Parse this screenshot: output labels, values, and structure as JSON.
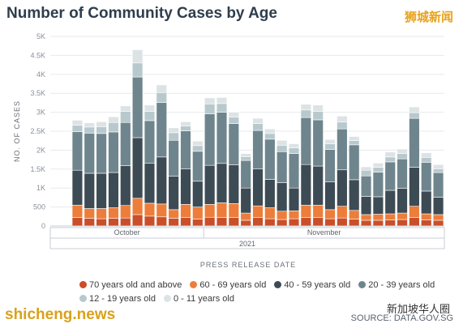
{
  "watermarks": {
    "top_right": "狮城新闻",
    "bottom_left": "shicheng.news",
    "bottom_right": "新加坡华人圈"
  },
  "source": "SOURCE: DATA.GOV.SG",
  "chart_data": {
    "type": "bar",
    "stacked": true,
    "title": "Number of Community Cases by Age",
    "ylabel": "NO. OF CASES",
    "xlabel": "PRESS RELEASE DATE",
    "ylim": [
      0,
      5000
    ],
    "yticks": [
      0,
      500,
      1000,
      1500,
      2000,
      2500,
      3000,
      3500,
      4000,
      4500,
      5000
    ],
    "ytick_labels": [
      "0",
      "500",
      "1K",
      "1.5K",
      "2K",
      "2.5K",
      "3K",
      "3.5K",
      "4K",
      "4.5K",
      "5K"
    ],
    "month_labels": [
      "October",
      "November"
    ],
    "year_label": "2021",
    "grid": true,
    "legend_position": "bottom",
    "series": [
      {
        "name": "70 years old and above",
        "color": "#c94f2a",
        "values": [
          220,
          200,
          190,
          200,
          210,
          300,
          260,
          240,
          200,
          220,
          180,
          230,
          220,
          220,
          150,
          220,
          190,
          170,
          190,
          220,
          220,
          190,
          210,
          180,
          150,
          150,
          160,
          170,
          220,
          160,
          150
        ]
      },
      {
        "name": "60 - 69 years old",
        "color": "#ed7d3a",
        "values": [
          330,
          260,
          270,
          280,
          330,
          430,
          340,
          340,
          230,
          350,
          320,
          340,
          390,
          370,
          190,
          310,
          290,
          220,
          210,
          330,
          330,
          240,
          310,
          230,
          150,
          160,
          160,
          170,
          300,
          160,
          150
        ]
      },
      {
        "name": "40 - 59 years old",
        "color": "#3d4b54",
        "values": [
          920,
          930,
          930,
          930,
          1050,
          1600,
          1060,
          1240,
          880,
          940,
          680,
          1030,
          1040,
          1020,
          660,
          980,
          750,
          750,
          600,
          1070,
          1030,
          730,
          960,
          810,
          480,
          460,
          620,
          650,
          1030,
          600,
          460
        ]
      },
      {
        "name": "20 - 39 years old",
        "color": "#6f858d",
        "values": [
          1020,
          1060,
          1050,
          1070,
          1140,
          1600,
          1120,
          1440,
          950,
          1000,
          790,
          1360,
          1350,
          1090,
          730,
          1010,
          1060,
          820,
          910,
          1240,
          1220,
          860,
          1080,
          920,
          540,
          650,
          750,
          780,
          1290,
          760,
          650
        ]
      },
      {
        "name": "12 - 19 years old",
        "color": "#b8c9ce",
        "values": [
          170,
          160,
          180,
          250,
          290,
          370,
          240,
          260,
          200,
          130,
          150,
          260,
          230,
          170,
          100,
          180,
          150,
          170,
          150,
          200,
          220,
          150,
          180,
          110,
          150,
          130,
          130,
          140,
          150,
          130,
          100
        ]
      },
      {
        "name": "0 - 11 years old",
        "color": "#dde3e5",
        "values": [
          130,
          110,
          130,
          150,
          150,
          350,
          170,
          200,
          130,
          110,
          120,
          160,
          160,
          130,
          80,
          140,
          120,
          130,
          110,
          150,
          170,
          110,
          160,
          110,
          90,
          110,
          130,
          120,
          150,
          120,
          110
        ]
      }
    ]
  }
}
